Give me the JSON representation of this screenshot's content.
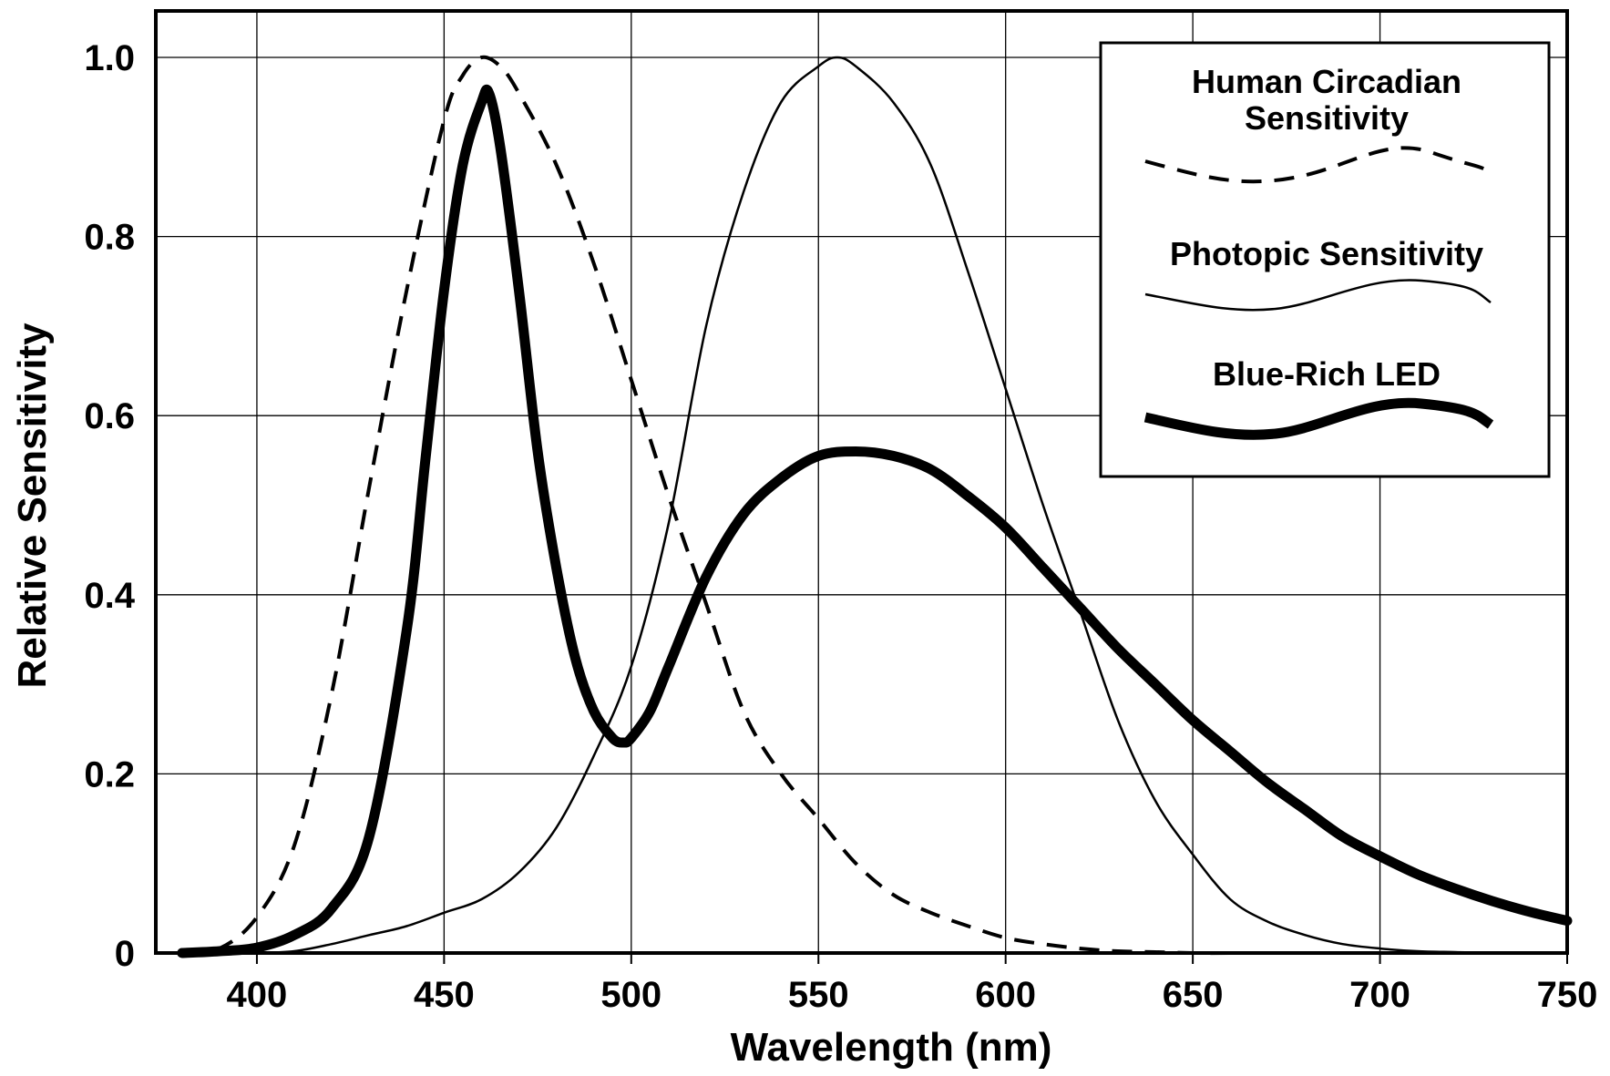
{
  "chart_data": {
    "type": "line",
    "xlabel": "Wavelength (nm)",
    "ylabel": "Relative Sensitivity",
    "xlim": [
      373,
      750
    ],
    "ylim": [
      0,
      1.05
    ],
    "grid": true,
    "legend_position": "top-right",
    "x_ticks": [
      400,
      450,
      500,
      550,
      600,
      650,
      700,
      750
    ],
    "x_tick_labels": [
      "400",
      "450",
      "500",
      "550",
      "600",
      "650",
      "700",
      "750"
    ],
    "y_ticks": [
      0,
      0.2,
      0.4,
      0.6,
      0.8,
      1.0
    ],
    "y_tick_labels": [
      "0",
      "0.2",
      "0.4",
      "0.6",
      "0.8",
      "1.0"
    ],
    "series": [
      {
        "name": "Human Circadian Sensitivity",
        "style": "dashed",
        "color": "#000000",
        "x": [
          380,
          390,
          400,
          410,
          420,
          430,
          440,
          450,
          455,
          460,
          465,
          470,
          480,
          490,
          500,
          510,
          520,
          530,
          540,
          550,
          560,
          570,
          580,
          590,
          600,
          610,
          620,
          630,
          640,
          650,
          660,
          670,
          680,
          690,
          700
        ],
        "values": [
          0.0,
          0.005,
          0.04,
          0.12,
          0.29,
          0.52,
          0.74,
          0.93,
          0.98,
          1.0,
          0.99,
          0.96,
          0.88,
          0.77,
          0.64,
          0.51,
          0.39,
          0.27,
          0.2,
          0.15,
          0.1,
          0.065,
          0.045,
          0.03,
          0.017,
          0.01,
          0.005,
          0.002,
          0.001,
          0.0,
          0.0,
          0.0,
          0.0,
          0.0,
          0.0
        ]
      },
      {
        "name": "Photopic Sensitivity",
        "style": "solid-thin",
        "color": "#000000",
        "x": [
          390,
          400,
          410,
          420,
          430,
          440,
          450,
          460,
          470,
          480,
          490,
          500,
          510,
          520,
          530,
          540,
          550,
          555,
          560,
          570,
          580,
          590,
          600,
          610,
          620,
          630,
          640,
          650,
          660,
          670,
          680,
          690,
          700,
          710,
          720,
          730,
          740,
          750
        ],
        "values": [
          0.0,
          0.0,
          0.002,
          0.01,
          0.02,
          0.03,
          0.045,
          0.06,
          0.09,
          0.14,
          0.22,
          0.32,
          0.48,
          0.7,
          0.85,
          0.95,
          0.99,
          1.0,
          0.99,
          0.95,
          0.88,
          0.76,
          0.63,
          0.5,
          0.38,
          0.26,
          0.17,
          0.11,
          0.06,
          0.035,
          0.02,
          0.01,
          0.005,
          0.002,
          0.001,
          0.0,
          0.0,
          0.0
        ]
      },
      {
        "name": "Blue-Rich LED",
        "style": "solid-thick",
        "color": "#000000",
        "x": [
          380,
          390,
          400,
          410,
          420,
          430,
          440,
          445,
          450,
          455,
          460,
          462,
          465,
          470,
          475,
          480,
          485,
          490,
          495,
          498,
          500,
          505,
          510,
          520,
          530,
          540,
          550,
          560,
          570,
          580,
          590,
          600,
          610,
          620,
          630,
          640,
          650,
          660,
          670,
          680,
          690,
          700,
          710,
          720,
          730,
          740,
          750
        ],
        "values": [
          0.0,
          0.002,
          0.006,
          0.02,
          0.05,
          0.13,
          0.36,
          0.55,
          0.74,
          0.88,
          0.95,
          0.96,
          0.9,
          0.74,
          0.56,
          0.43,
          0.33,
          0.27,
          0.24,
          0.235,
          0.24,
          0.27,
          0.32,
          0.42,
          0.49,
          0.53,
          0.555,
          0.56,
          0.555,
          0.54,
          0.51,
          0.475,
          0.43,
          0.385,
          0.34,
          0.3,
          0.26,
          0.225,
          0.19,
          0.16,
          0.13,
          0.108,
          0.088,
          0.072,
          0.058,
          0.046,
          0.036
        ]
      }
    ]
  }
}
